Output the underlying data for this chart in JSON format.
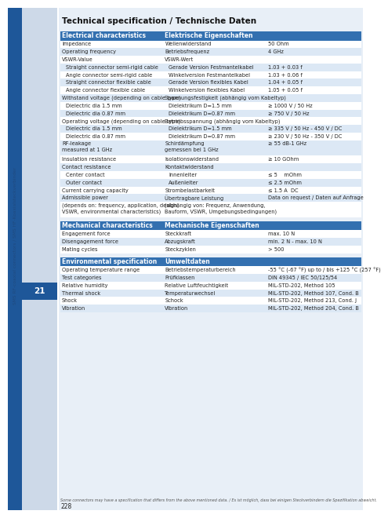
{
  "title": "Technical specification / Technische Daten",
  "page_number": "228",
  "section_number": "21",
  "sidebar_text": "SMS RF-coaxial connectors / SMS HF-Koaxialsteckverbinder",
  "footer_note": "Some connectors may have a specification that differs from the above mentioned data. / Es ist möglich, dass bei einigen Steckverbindern die Spezifikation abweicht.",
  "bg_light": "#dce6f0",
  "bg_white": "#ffffff",
  "sidebar_light": "#cdd9e8",
  "sidebar_dark": "#1e5799",
  "table_header_bg": "#3370b0",
  "table_header_text": "#ffffff",
  "row_alt": "#dce8f5",
  "row_white": "#ffffff",
  "text_dark": "#222222",
  "text_small": "#444444",
  "sections": [
    {
      "header_en": "Electrical characteristics",
      "header_de": "Elektrische Eigenschaften",
      "header_val": "",
      "rows": [
        {
          "en": "Impedance",
          "de": "Wellenwiderstand",
          "val": "50 Ohm",
          "indent": false,
          "lines": 1
        },
        {
          "en": "Operating frequency",
          "de": "Betriebsfrequenz",
          "val": "4 GHz",
          "indent": false,
          "lines": 1
        },
        {
          "en": "VSWR-Value",
          "de": "VSWR-Wert",
          "val": "",
          "indent": false,
          "lines": 1
        },
        {
          "en": "Straight connector semi-rigid cable",
          "de": "Gerade Version Festmantelkabel",
          "val": "1.03 + 0.03 f",
          "indent": true,
          "lines": 1
        },
        {
          "en": "Angle connector semi-rigid cable",
          "de": "Winkelversion Festmantelkabel",
          "val": "1.03 + 0.06 f",
          "indent": true,
          "lines": 1
        },
        {
          "en": "Straight connector flexible cable",
          "de": "Gerade Version flexibles Kabel",
          "val": "1.04 + 0.05 f",
          "indent": true,
          "lines": 1
        },
        {
          "en": "Angle connector flexible cable",
          "de": "Winkelversion flexibles Kabel",
          "val": "1.05 + 0.05 f",
          "indent": true,
          "lines": 1
        },
        {
          "en": "Withstand voltage (depending on cable type)",
          "de": "Spannungsfestigkeit (abhängig vom Kabeltyp)",
          "val": "",
          "indent": false,
          "lines": 1
        },
        {
          "en": "Dielectric dia 1.5 mm",
          "de": "Dielektrikum D=1.5 mm",
          "val": "≥ 1000 V / 50 Hz",
          "indent": true,
          "lines": 1
        },
        {
          "en": "Dielectric dia 0.87 mm",
          "de": "Dielektrikum D=0.87 mm",
          "val": "≥ 750 V / 50 Hz",
          "indent": true,
          "lines": 1
        },
        {
          "en": "Operating voltage (depending on cable type)",
          "de": "Betriebsspannung (abhängig vom Kabeltyp)",
          "val": "",
          "indent": false,
          "lines": 1
        },
        {
          "en": "Dielectric dia 1.5 mm",
          "de": "Dielektrikum D=1.5 mm",
          "val": "≥ 335 V / 50 Hz - 450 V / DC",
          "indent": true,
          "lines": 1
        },
        {
          "en": "Dielectric dia 0.87 mm",
          "de": "Dielektrikum D=0.87 mm",
          "val": "≥ 230 V / 50 Hz - 350 V / DC",
          "indent": true,
          "lines": 1
        },
        {
          "en": "RF-leakage\nmeasured at 1 GHz",
          "de": "Schirdämpfung\ngemessen bei 1 GHz",
          "val": "≥ 55 dB-1 GHz",
          "indent": false,
          "lines": 2
        },
        {
          "en": "Insulation resistance",
          "de": "Isolationswiderstand",
          "val": "≥ 10 GOhm",
          "indent": false,
          "lines": 1
        },
        {
          "en": "Contact resistance",
          "de": "Kontaktwiderstand",
          "val": "",
          "indent": false,
          "lines": 1
        },
        {
          "en": "Center contact",
          "de": "Innenleiter",
          "val": "≤ 5    mOhm",
          "indent": true,
          "lines": 1
        },
        {
          "en": "Outer contact",
          "de": "Außenleiter",
          "val": "≤ 2.5 mOhm",
          "indent": true,
          "lines": 1
        },
        {
          "en": "Current carrying capacity",
          "de": "Strombelastbarkeit",
          "val": "≤ 1.5 A  DC",
          "indent": false,
          "lines": 1
        },
        {
          "en": "Admissible power",
          "de": "Übertragbare Leistung",
          "val": "Data on request / Daten auf Anfrage",
          "indent": false,
          "lines": 1
        },
        {
          "en": "(depends on: frequency, application, design,\nVSWR, environmental characteristics)",
          "de": "(abhängig von: Frequenz, Anwendung,\nBauform, VSWR, Umgebungsbedingungen)",
          "val": "",
          "indent": false,
          "lines": 2
        }
      ]
    },
    {
      "header_en": "Mechanical characteristics",
      "header_de": "Mechanische Eigenschaften",
      "header_val": "",
      "rows": [
        {
          "en": "Engagement force",
          "de": "Steckkraft",
          "val": "max. 10 N",
          "indent": false,
          "lines": 1
        },
        {
          "en": "Disengagement force",
          "de": "Abzugskraft",
          "val": "min. 2 N - max. 10 N",
          "indent": false,
          "lines": 1
        },
        {
          "en": "Mating cycles",
          "de": "Steckzyklen",
          "val": "> 500",
          "indent": false,
          "lines": 1
        }
      ]
    },
    {
      "header_en": "Environmental specification",
      "header_de": "Umweltdaten",
      "header_val": "",
      "rows": [
        {
          "en": "Operating temperature range",
          "de": "Betriebstemperaturbereich",
          "val": "-55 °C (-67 °F) up to / bis +125 °C (257 °F)",
          "indent": false,
          "lines": 1
        },
        {
          "en": "Test categories",
          "de": "Prüfklassen",
          "val": "DIN 49345 / IEC 50/125/54",
          "indent": false,
          "lines": 1
        },
        {
          "en": "Relative humidity",
          "de": "Relative Luftfeuchtigkeit",
          "val": "MIL-STD-202, Method 105",
          "indent": false,
          "lines": 1
        },
        {
          "en": "Thermal shock",
          "de": "Temperaturwechsel",
          "val": "MIL-STD-202, Method 107, Cond. B",
          "indent": false,
          "lines": 1
        },
        {
          "en": "Shock",
          "de": "Schock",
          "val": "MIL-STD-202, Method 213, Cond. J",
          "indent": false,
          "lines": 1
        },
        {
          "en": "Vibration",
          "de": "Vibration",
          "val": "MIL-STD-202, Method 204, Cond. B",
          "indent": false,
          "lines": 1
        }
      ]
    }
  ]
}
